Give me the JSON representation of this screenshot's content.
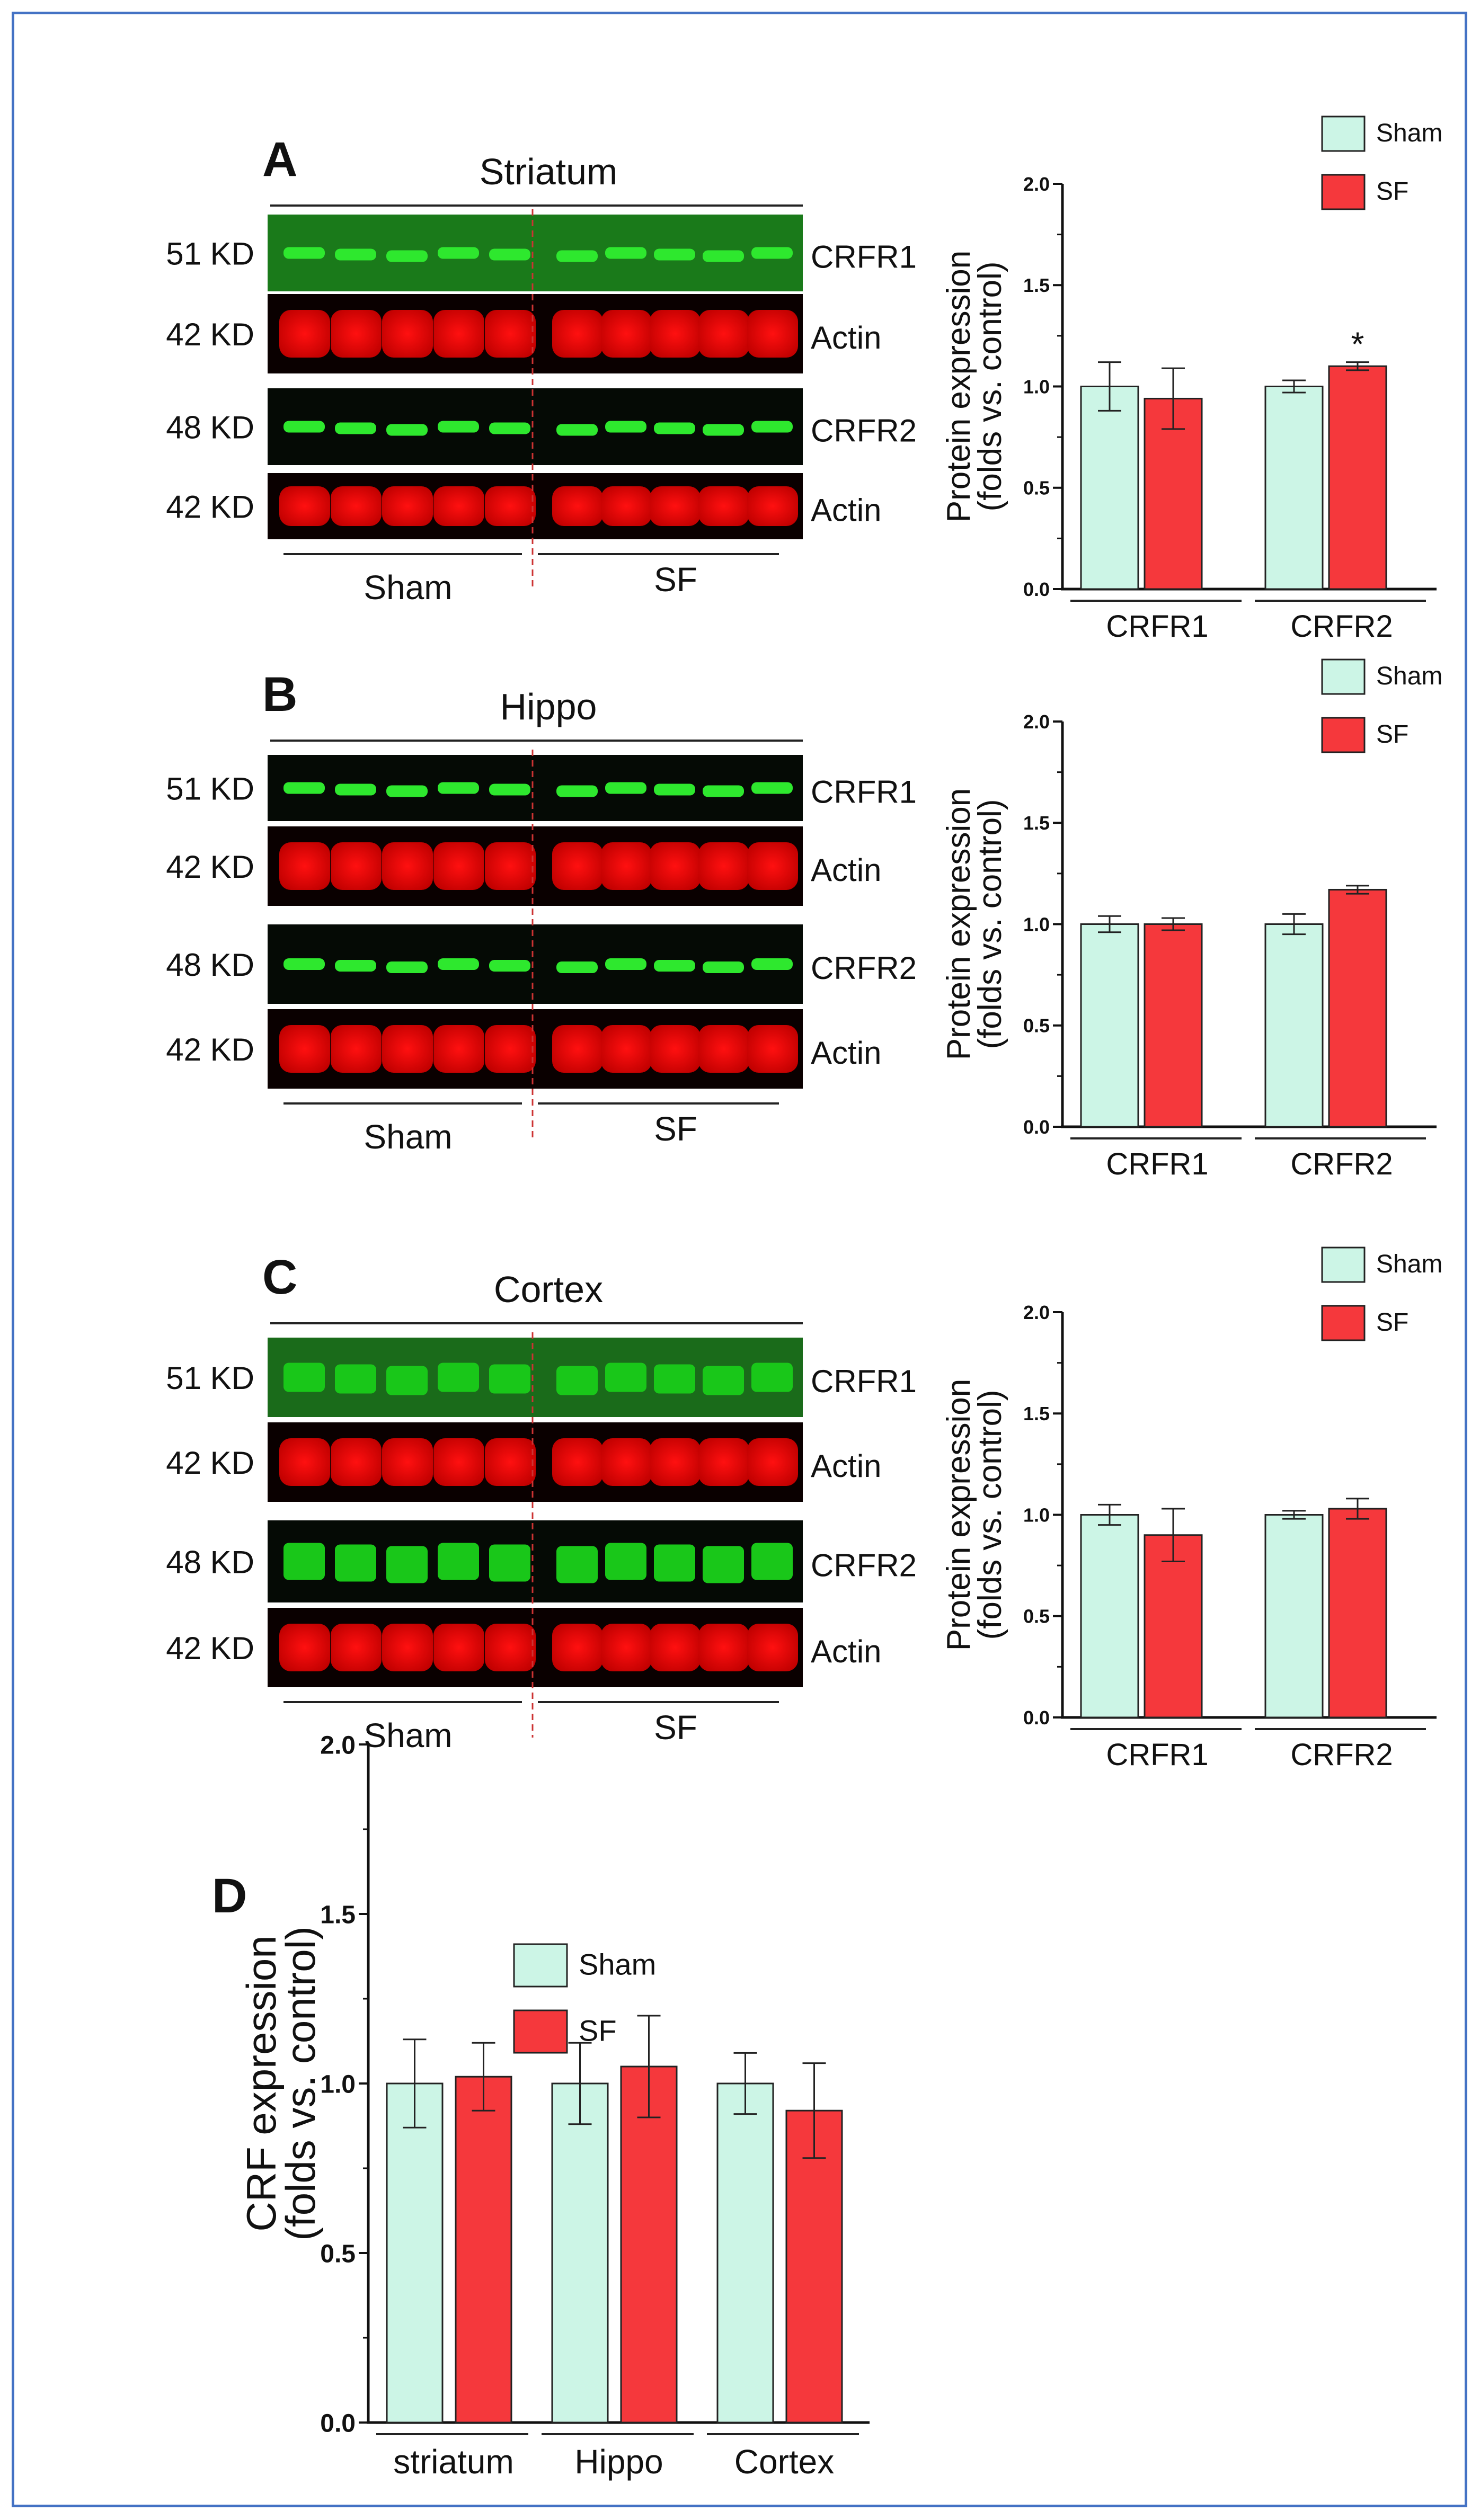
{
  "colors": {
    "sham": "#ccf5e6",
    "sf": "#f5383c",
    "frame": "#4472c4",
    "divider": "#cc3333"
  },
  "panels": [
    {
      "letter": "A",
      "region": "Striatum",
      "mw_labels": [
        "51 KD",
        "42 KD",
        "48 KD",
        "42 KD"
      ],
      "band_labels": [
        "CRFR1",
        "Actin",
        "CRFR2",
        "Actin"
      ],
      "group_labels": [
        "Sham",
        "SF"
      ]
    },
    {
      "letter": "B",
      "region": "Hippo",
      "mw_labels": [
        "51 KD",
        "42 KD",
        "48 KD",
        "42 KD"
      ],
      "band_labels": [
        "CRFR1",
        "Actin",
        "CRFR2",
        "Actin"
      ],
      "group_labels": [
        "Sham",
        "SF"
      ]
    },
    {
      "letter": "C",
      "region": "Cortex",
      "mw_labels": [
        "51 KD",
        "42 KD",
        "48 KD",
        "42 KD"
      ],
      "band_labels": [
        "CRFR1",
        "Actin",
        "CRFR2",
        "Actin"
      ],
      "group_labels": [
        "Sham",
        "SF"
      ]
    }
  ],
  "panel_d_letter": "D",
  "chart_data": [
    {
      "type": "bar",
      "panel": "A",
      "categories": [
        "CRFR1",
        "CRFR2"
      ],
      "series": [
        {
          "name": "Sham",
          "values": [
            1.0,
            1.0
          ],
          "errors": [
            0.12,
            0.03
          ]
        },
        {
          "name": "SF",
          "values": [
            0.94,
            1.1
          ],
          "errors": [
            0.15,
            0.02
          ]
        }
      ],
      "annotations": [
        {
          "text": "*",
          "category": "CRFR2",
          "series": "SF"
        }
      ],
      "ylabel_line1": "Protein expression",
      "ylabel_line2": "(folds vs. control)",
      "ylim": [
        0,
        2.0
      ],
      "yticks": [
        "0.0",
        "0.5",
        "1.0",
        "1.5",
        "2.0"
      ],
      "legend": [
        "Sham",
        "SF"
      ]
    },
    {
      "type": "bar",
      "panel": "B",
      "categories": [
        "CRFR1",
        "CRFR2"
      ],
      "series": [
        {
          "name": "Sham",
          "values": [
            1.0,
            1.0
          ],
          "errors": [
            0.04,
            0.05
          ]
        },
        {
          "name": "SF",
          "values": [
            1.0,
            1.17
          ],
          "errors": [
            0.03,
            0.02
          ]
        }
      ],
      "annotations": [],
      "ylabel_line1": "Protein expression",
      "ylabel_line2": "(folds vs. control)",
      "ylim": [
        0,
        2.0
      ],
      "yticks": [
        "0.0",
        "0.5",
        "1.0",
        "1.5",
        "2.0"
      ],
      "legend": [
        "Sham",
        "SF"
      ]
    },
    {
      "type": "bar",
      "panel": "C",
      "categories": [
        "CRFR1",
        "CRFR2"
      ],
      "series": [
        {
          "name": "Sham",
          "values": [
            1.0,
            1.0
          ],
          "errors": [
            0.05,
            0.02
          ]
        },
        {
          "name": "SF",
          "values": [
            0.9,
            1.03
          ],
          "errors": [
            0.13,
            0.05
          ]
        }
      ],
      "annotations": [],
      "ylabel_line1": "Protein expression",
      "ylabel_line2": "(folds vs. control)",
      "ylim": [
        0,
        2.0
      ],
      "yticks": [
        "0.0",
        "0.5",
        "1.0",
        "1.5",
        "2.0"
      ],
      "legend": [
        "Sham",
        "SF"
      ]
    },
    {
      "type": "bar",
      "panel": "D",
      "categories": [
        "striatum",
        "Hippo",
        "Cortex"
      ],
      "series": [
        {
          "name": "Sham",
          "values": [
            1.0,
            1.0,
            1.0
          ],
          "errors": [
            0.13,
            0.12,
            0.09
          ]
        },
        {
          "name": "SF",
          "values": [
            1.02,
            1.05,
            0.92
          ],
          "errors": [
            0.1,
            0.15,
            0.14
          ]
        }
      ],
      "annotations": [],
      "ylabel_line1": "CRF expression",
      "ylabel_line2": "(folds vs. control)",
      "ylim": [
        0,
        2.0
      ],
      "yticks": [
        "0.0",
        "0.5",
        "1.0",
        "1.5",
        "2.0"
      ],
      "legend": [
        "Sham",
        "SF"
      ]
    }
  ]
}
